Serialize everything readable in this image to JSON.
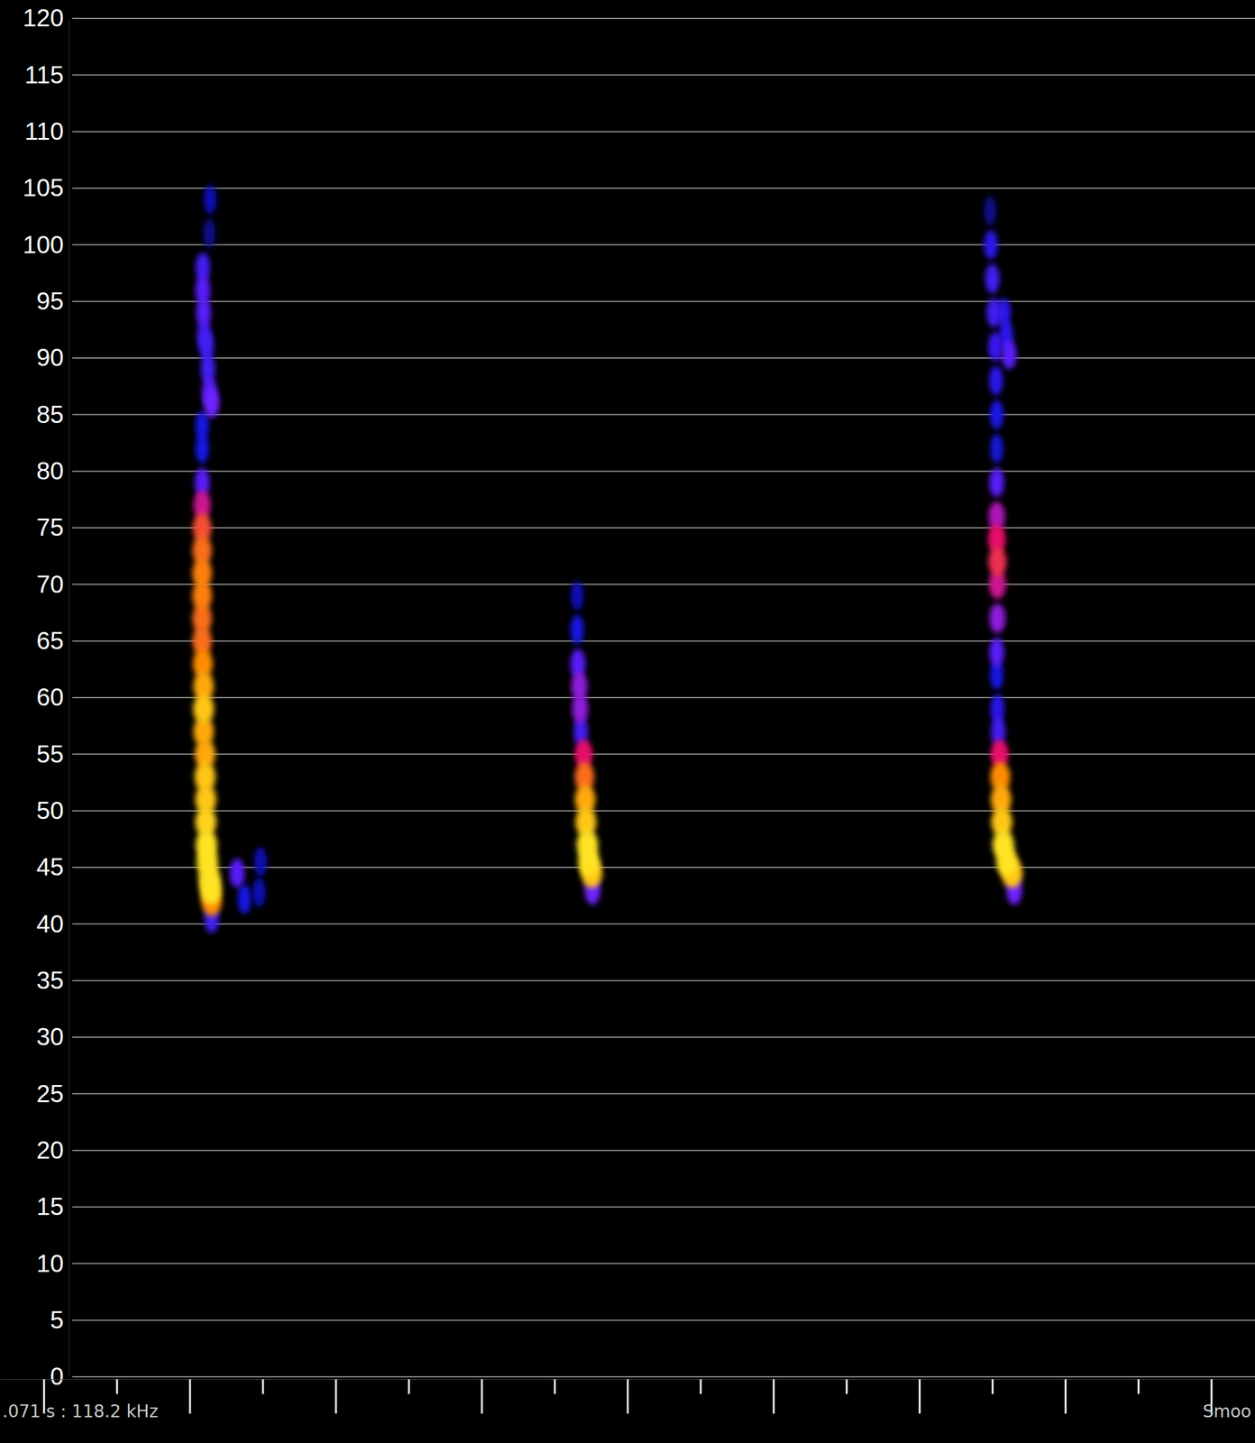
{
  "chart_data": {
    "type": "spectrogram",
    "annotations": [
      ".071 s : 118.2 kHz",
      "Smoo"
    ],
    "ylim": [
      0,
      120
    ],
    "yticks": [
      0,
      5,
      10,
      15,
      20,
      25,
      30,
      35,
      40,
      45,
      50,
      55,
      60,
      65,
      70,
      75,
      80,
      85,
      90,
      95,
      100,
      105,
      110,
      115,
      120
    ],
    "xlim": [
      -0.6,
      16.6
    ],
    "xticks": [
      0,
      1,
      2,
      3,
      4,
      5,
      6,
      7,
      8,
      9,
      10,
      11,
      12,
      13,
      14,
      15,
      16
    ],
    "grid": true,
    "tick_labels": "y",
    "intensity_range": [
      0,
      1
    ],
    "series": [
      {
        "x": [
          2.28,
          2.27,
          2.18,
          2.18,
          2.19,
          2.2,
          2.23,
          2.25,
          2.27,
          2.3,
          2.17,
          2.17,
          2.17,
          2.17,
          2.17,
          2.17,
          2.17,
          2.17,
          2.17,
          2.17,
          2.18,
          2.19,
          2.19,
          2.19,
          2.21,
          2.21,
          2.22,
          2.22,
          2.23,
          2.24,
          2.27,
          2.29,
          2.3,
          2.3,
          2.65,
          2.75,
          2.95,
          2.97
        ],
        "values": [
          104,
          101,
          98,
          96,
          94,
          92,
          91,
          89,
          87,
          86,
          84,
          82,
          79,
          77,
          75,
          73,
          71,
          69,
          67,
          65,
          63,
          61,
          59,
          57,
          55,
          53,
          51,
          49,
          47,
          45.5,
          44,
          43,
          42,
          40.5,
          44.5,
          42.2,
          42.8,
          45.5
        ],
        "intensity": [
          0.15,
          0.1,
          0.3,
          0.35,
          0.35,
          0.3,
          0.3,
          0.3,
          0.35,
          0.4,
          0.2,
          0.2,
          0.35,
          0.55,
          0.7,
          0.75,
          0.78,
          0.78,
          0.75,
          0.75,
          0.8,
          0.85,
          0.9,
          0.85,
          0.85,
          0.9,
          0.9,
          0.92,
          0.95,
          0.95,
          0.95,
          0.95,
          0.8,
          0.3,
          0.35,
          0.2,
          0.15,
          0.15
        ]
      },
      {
        "x": [
          7.31,
          7.31,
          7.32,
          7.34,
          7.35,
          7.36,
          7.4,
          7.41,
          7.42,
          7.43,
          7.45,
          7.47,
          7.51,
          7.52
        ],
        "values": [
          69,
          66,
          63,
          61,
          59,
          57,
          55,
          53,
          51,
          49,
          47,
          45.5,
          44.5,
          43
        ],
        "intensity": [
          0.15,
          0.2,
          0.35,
          0.45,
          0.45,
          0.3,
          0.6,
          0.75,
          0.85,
          0.9,
          0.95,
          0.95,
          0.9,
          0.4
        ]
      },
      {
        "x": [
          12.97,
          12.98,
          13.0,
          13.02,
          13.04,
          13.05,
          13.06,
          13.06,
          13.16,
          13.19,
          13.23,
          13.06,
          13.06,
          13.06,
          13.07,
          13.07,
          13.07,
          13.06,
          13.06,
          13.07,
          13.08,
          13.1,
          13.11,
          13.12,
          13.13,
          13.15,
          13.2,
          13.27,
          13.3
        ],
        "values": [
          103,
          100,
          97,
          94,
          91,
          88,
          85,
          82,
          94,
          92,
          90.3,
          79,
          76,
          74,
          72,
          70,
          67,
          64,
          62,
          59,
          57,
          55,
          53,
          51,
          49,
          47,
          45.5,
          44.5,
          43
        ],
        "intensity": [
          0.1,
          0.25,
          0.3,
          0.3,
          0.28,
          0.25,
          0.22,
          0.18,
          0.25,
          0.25,
          0.35,
          0.35,
          0.5,
          0.6,
          0.65,
          0.55,
          0.45,
          0.35,
          0.2,
          0.25,
          0.3,
          0.6,
          0.8,
          0.85,
          0.9,
          0.95,
          0.95,
          0.9,
          0.4
        ]
      }
    ]
  }
}
